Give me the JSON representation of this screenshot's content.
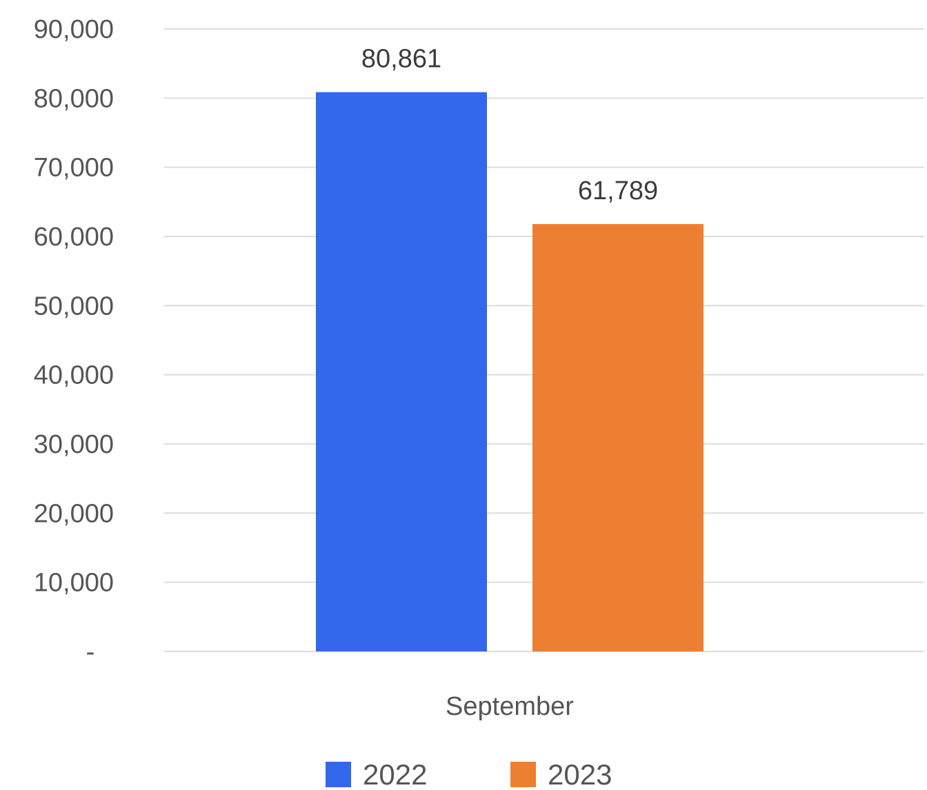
{
  "chart_data": {
    "type": "bar",
    "categories": [
      "September"
    ],
    "series": [
      {
        "name": "2022",
        "values": [
          80861
        ],
        "color": "#3367EC"
      },
      {
        "name": "2023",
        "values": [
          61789
        ],
        "color": "#ED7F33"
      }
    ],
    "data_labels": [
      "80,861",
      "61,789"
    ],
    "ylim": [
      0,
      90000
    ],
    "y_ticks": [
      {
        "value": 0,
        "label": "-"
      },
      {
        "value": 10000,
        "label": "10,000"
      },
      {
        "value": 20000,
        "label": "20,000"
      },
      {
        "value": 30000,
        "label": "30,000"
      },
      {
        "value": 40000,
        "label": "40,000"
      },
      {
        "value": 50000,
        "label": "50,000"
      },
      {
        "value": 60000,
        "label": "60,000"
      },
      {
        "value": 70000,
        "label": "70,000"
      },
      {
        "value": 80000,
        "label": "80,000"
      },
      {
        "value": 90000,
        "label": "90,000"
      }
    ],
    "grid": true,
    "legend_position": "bottom",
    "title": "",
    "xlabel": "",
    "ylabel": ""
  }
}
